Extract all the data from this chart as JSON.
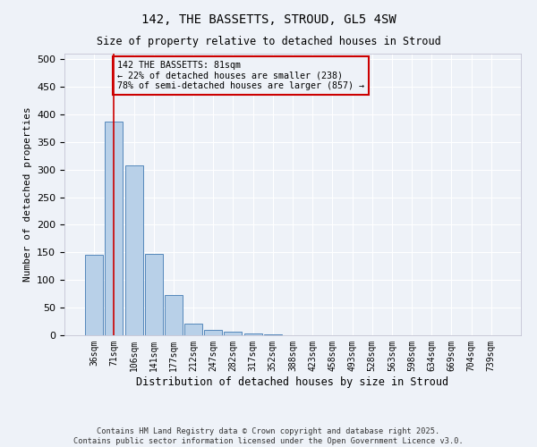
{
  "title1": "142, THE BASSETTS, STROUD, GL5 4SW",
  "title2": "Size of property relative to detached houses in Stroud",
  "xlabel": "Distribution of detached houses by size in Stroud",
  "ylabel": "Number of detached properties",
  "bar_labels": [
    "36sqm",
    "71sqm",
    "106sqm",
    "141sqm",
    "177sqm",
    "212sqm",
    "247sqm",
    "282sqm",
    "317sqm",
    "352sqm",
    "388sqm",
    "423sqm",
    "458sqm",
    "493sqm",
    "528sqm",
    "563sqm",
    "598sqm",
    "634sqm",
    "669sqm",
    "704sqm",
    "739sqm"
  ],
  "bar_values": [
    145,
    387,
    308,
    148,
    73,
    21,
    10,
    7,
    4,
    2,
    0,
    0,
    0,
    0,
    0,
    0,
    0,
    0,
    0,
    0,
    0
  ],
  "bar_color": "#b8d0e8",
  "bar_edge_color": "#5588bb",
  "vline_x": 1.0,
  "vline_color": "#cc0000",
  "annotation_text": "142 THE BASSETTS: 81sqm\n← 22% of detached houses are smaller (238)\n78% of semi-detached houses are larger (857) →",
  "annotation_box_color": "#cc0000",
  "annotation_text_color": "#000000",
  "ylim": [
    0,
    510
  ],
  "yticks": [
    0,
    50,
    100,
    150,
    200,
    250,
    300,
    350,
    400,
    450,
    500
  ],
  "background_color": "#eef2f8",
  "grid_color": "#ffffff",
  "footer": "Contains HM Land Registry data © Crown copyright and database right 2025.\nContains public sector information licensed under the Open Government Licence v3.0."
}
